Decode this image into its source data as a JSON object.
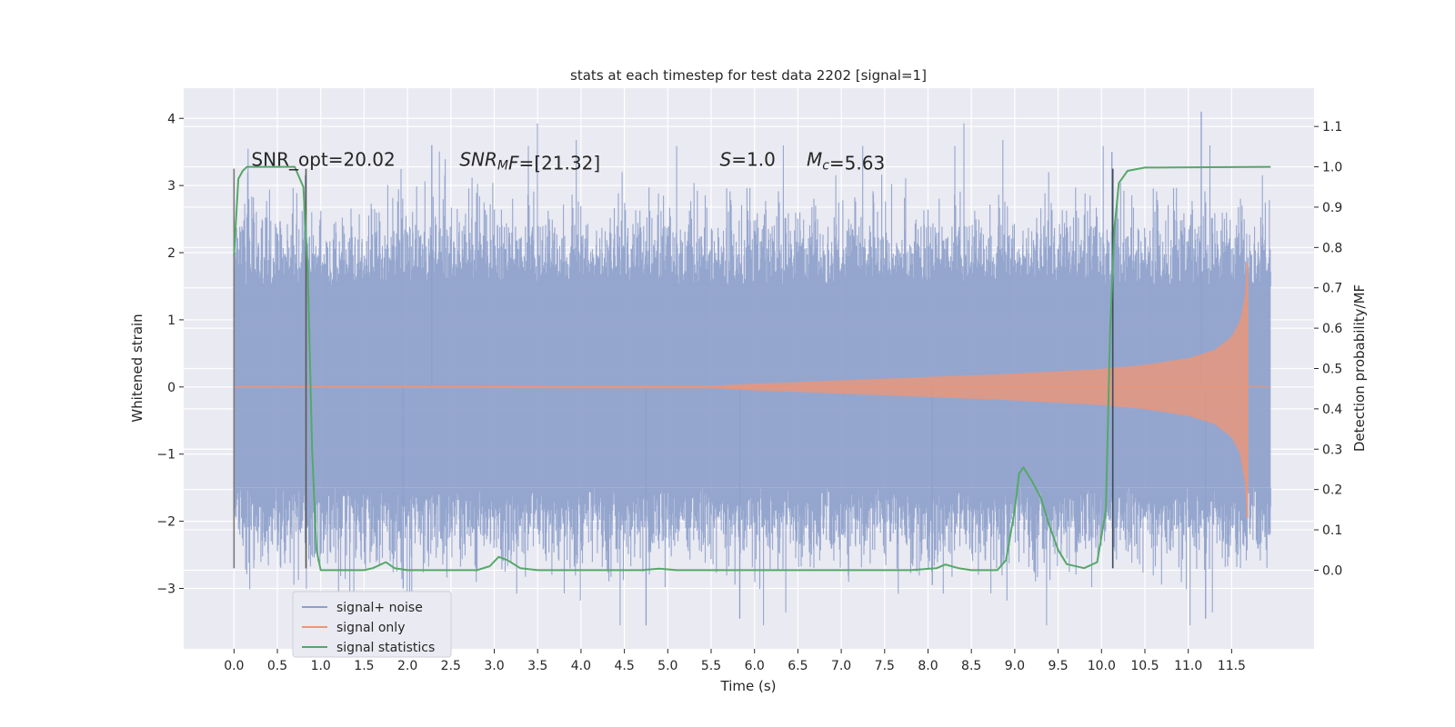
{
  "chart_data": {
    "type": "line",
    "title": "stats at each timestep for test data 2202 [signal=1]",
    "xlabel": "Time (s)",
    "ylabel": "Whitened strain",
    "y2label": "Detection probability/MF",
    "xlim": [
      -0.58,
      12.45
    ],
    "ylim": [
      -3.9,
      4.45
    ],
    "y2lim": [
      -0.195,
      1.195
    ],
    "xticks": [
      0.0,
      0.5,
      1.0,
      1.5,
      2.0,
      2.5,
      3.0,
      3.5,
      4.0,
      4.5,
      5.0,
      5.5,
      6.0,
      6.5,
      7.0,
      7.5,
      8.0,
      8.5,
      9.0,
      9.5,
      10.0,
      10.5,
      11.0,
      11.5
    ],
    "xtick_labels": [
      "0.0",
      "0.5",
      "1.0",
      "1.5",
      "2.0",
      "2.5",
      "3.0",
      "3.5",
      "4.0",
      "4.5",
      "5.0",
      "5.5",
      "6.0",
      "6.5",
      "7.0",
      "7.5",
      "8.0",
      "8.5",
      "9.0",
      "9.5",
      "10.0",
      "10.5",
      "11.0",
      "11.5"
    ],
    "yticks": [
      4,
      3,
      2,
      1,
      0,
      -1,
      -2,
      -3
    ],
    "ytick_labels": [
      "4",
      "3",
      "2",
      "1",
      "0",
      "−1",
      "−2",
      "−3"
    ],
    "y2ticks": [
      1.1,
      1.0,
      0.9,
      0.8,
      0.7,
      0.6,
      0.5,
      0.4,
      0.3,
      0.2,
      0.1,
      0.0
    ],
    "y2tick_labels": [
      "1.1",
      "1.0",
      "0.9",
      "0.8",
      "0.7",
      "0.6",
      "0.5",
      "0.4",
      "0.3",
      "0.2",
      "0.1",
      "0.0"
    ],
    "grid": true,
    "legend_position": "lower-left",
    "annotations": [
      {
        "id": "snr-opt",
        "x": 0.2,
        "y2": 1.0,
        "parts": [
          {
            "t": "SNR_opt=20.02"
          }
        ]
      },
      {
        "id": "snr-mf",
        "x": 2.6,
        "y2": 1.0,
        "parts": [
          {
            "t": "SNR",
            "i": true
          },
          {
            "t": "M",
            "i": true,
            "sub": true
          },
          {
            "t": "F",
            "i": true
          },
          {
            "t": "=[21.32]"
          }
        ]
      },
      {
        "id": "s-value",
        "x": 5.6,
        "y2": 1.0,
        "parts": [
          {
            "t": "S",
            "i": true
          },
          {
            "t": "=1.0"
          }
        ]
      },
      {
        "id": "mc-value",
        "x": 6.6,
        "y2": 1.0,
        "parts": [
          {
            "t": "M",
            "i": true
          },
          {
            "t": "c",
            "i": true,
            "sub": true
          },
          {
            "t": "=5.63"
          }
        ]
      }
    ],
    "series": [
      {
        "name": "signal+ noise",
        "color": "#8da0cb",
        "kind": "noise",
        "t_start": 0.0,
        "t_end": 11.95,
        "core_amplitude": 1.5,
        "peak_amplitude": 4.1,
        "min_value": -3.55
      },
      {
        "name": "signal only",
        "color": "#e9967a",
        "kind": "chirp",
        "t_start": 0.0,
        "t_end": 11.68,
        "amplitude_points": [
          [
            0,
            0.01
          ],
          [
            5.5,
            0.02
          ],
          [
            6.0,
            0.05
          ],
          [
            7.0,
            0.1
          ],
          [
            8.0,
            0.15
          ],
          [
            9.0,
            0.2
          ],
          [
            10.0,
            0.27
          ],
          [
            10.5,
            0.33
          ],
          [
            11.0,
            0.43
          ],
          [
            11.3,
            0.55
          ],
          [
            11.5,
            0.75
          ],
          [
            11.6,
            1.0
          ],
          [
            11.66,
            1.4
          ],
          [
            11.68,
            1.85
          ]
        ],
        "peak_high": 1.85,
        "peak_low": -1.95
      },
      {
        "name": "signal statistics",
        "color": "#55a868",
        "kind": "probability",
        "points": [
          [
            0.0,
            0.78
          ],
          [
            0.05,
            0.97
          ],
          [
            0.1,
            0.99
          ],
          [
            0.15,
            1.0
          ],
          [
            0.5,
            1.0
          ],
          [
            0.7,
            1.0
          ],
          [
            0.8,
            0.95
          ],
          [
            0.85,
            0.75
          ],
          [
            0.9,
            0.3
          ],
          [
            0.95,
            0.05
          ],
          [
            1.0,
            0.0
          ],
          [
            1.5,
            0.0
          ],
          [
            1.6,
            0.005
          ],
          [
            1.75,
            0.02
          ],
          [
            1.85,
            0.005
          ],
          [
            2.0,
            0.0
          ],
          [
            2.8,
            0.0
          ],
          [
            2.95,
            0.01
          ],
          [
            3.05,
            0.033
          ],
          [
            3.15,
            0.025
          ],
          [
            3.3,
            0.005
          ],
          [
            3.5,
            0.0
          ],
          [
            4.7,
            0.0
          ],
          [
            4.9,
            0.004
          ],
          [
            5.1,
            0.0
          ],
          [
            7.8,
            0.0
          ],
          [
            8.1,
            0.005
          ],
          [
            8.2,
            0.014
          ],
          [
            8.35,
            0.005
          ],
          [
            8.5,
            0.0
          ],
          [
            8.8,
            0.0
          ],
          [
            8.9,
            0.025
          ],
          [
            9.0,
            0.15
          ],
          [
            9.05,
            0.24
          ],
          [
            9.1,
            0.255
          ],
          [
            9.2,
            0.22
          ],
          [
            9.3,
            0.18
          ],
          [
            9.4,
            0.11
          ],
          [
            9.5,
            0.05
          ],
          [
            9.6,
            0.015
          ],
          [
            9.8,
            0.005
          ],
          [
            9.95,
            0.02
          ],
          [
            10.05,
            0.15
          ],
          [
            10.1,
            0.6
          ],
          [
            10.15,
            0.85
          ],
          [
            10.2,
            0.96
          ],
          [
            10.3,
            0.99
          ],
          [
            10.5,
            0.998
          ],
          [
            11.95,
            1.0
          ]
        ]
      }
    ],
    "vertical_markers": [
      {
        "x": 0.0,
        "color": "#7a7a7a",
        "y_top": 3.25,
        "y_bottom": -2.7
      },
      {
        "x": 0.83,
        "color": "#5a5a5a",
        "y_top": 3.25,
        "y_bottom": -2.7
      },
      {
        "x": 10.13,
        "color": "#3d4a5c",
        "y_top": 3.25,
        "y_bottom": -2.7
      }
    ]
  }
}
